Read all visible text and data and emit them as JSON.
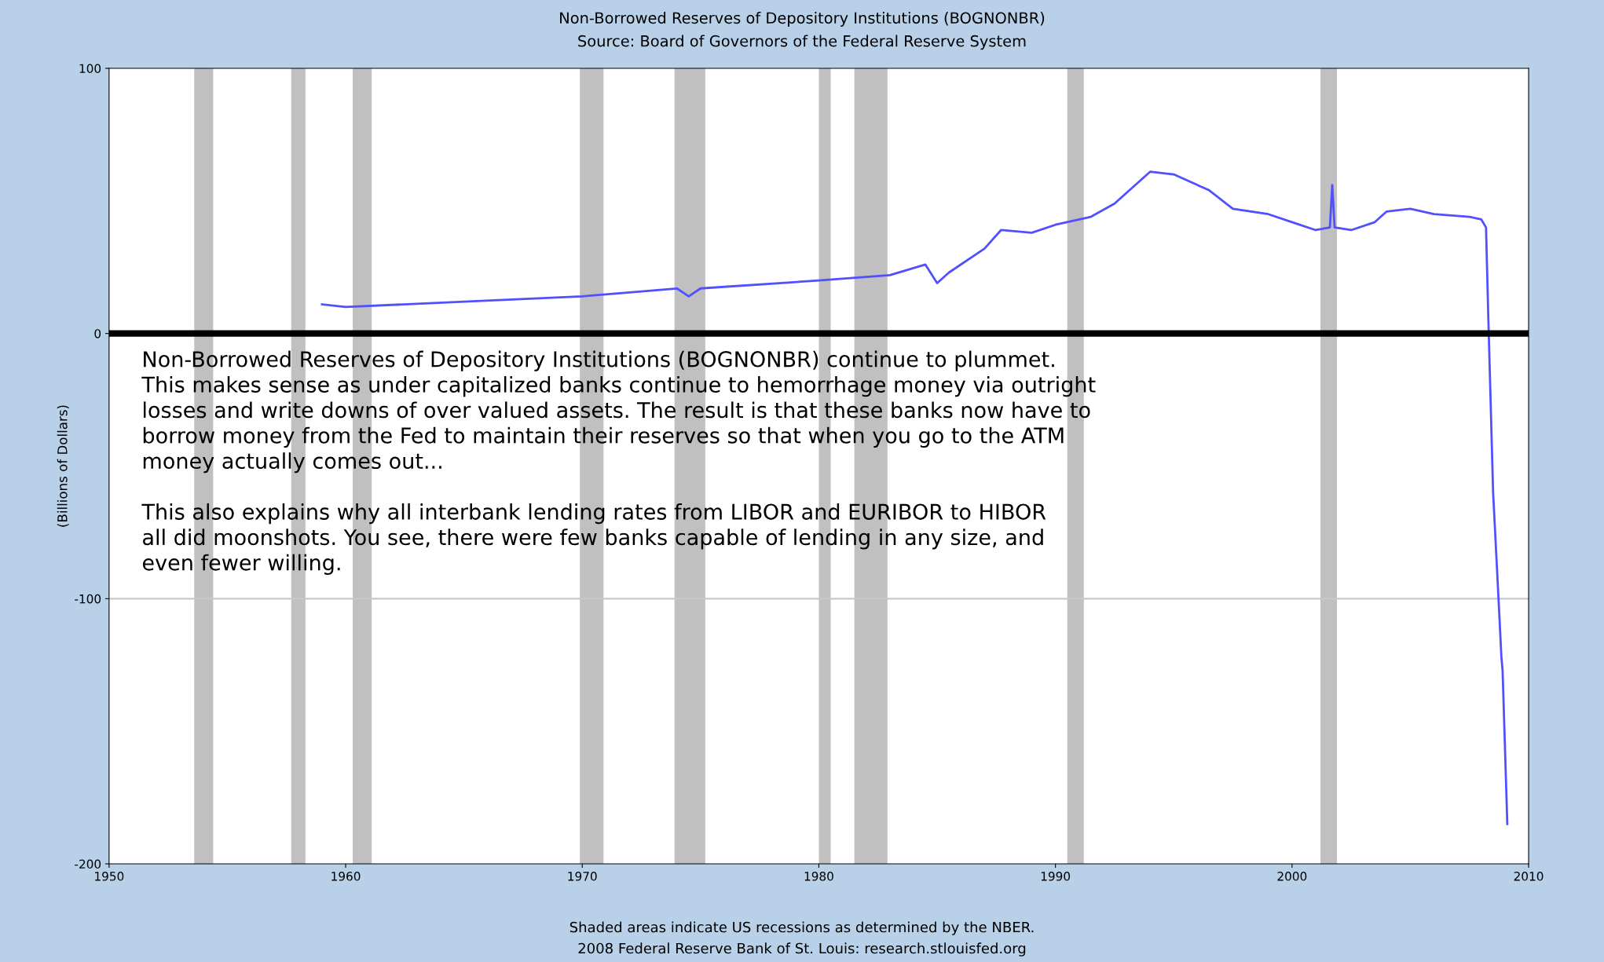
{
  "chart_data": {
    "type": "line",
    "title": "Non-Borrowed Reserves of Depository Institutions (BOGNONBR)",
    "subtitle": "Source: Board of Governors of the Federal Reserve System",
    "ylabel": "(Billions of Dollars)",
    "x": [
      1959.0,
      1960.0,
      1965.0,
      1970.0,
      1974.0,
      1974.5,
      1975.0,
      1980.0,
      1983.0,
      1984.5,
      1985.0,
      1985.5,
      1987.0,
      1987.7,
      1989.0,
      1990.0,
      1991.5,
      1992.5,
      1994.0,
      1995.0,
      1996.5,
      1997.5,
      1999.0,
      2000.0,
      2001.0,
      2001.6,
      2001.7,
      2001.8,
      2002.5,
      2003.5,
      2004.0,
      2005.0,
      2006.0,
      2007.5,
      2008.0,
      2008.2,
      2008.3,
      2008.5,
      2008.7,
      2008.85,
      2008.9,
      2009.1
    ],
    "series": [
      {
        "color": "#5050ff",
        "values": [
          11,
          10,
          12,
          14,
          17,
          14,
          17,
          20,
          22,
          26,
          19,
          23,
          32,
          39,
          38,
          41,
          44,
          49,
          61,
          60,
          54,
          47,
          45,
          42,
          39,
          40,
          56,
          40,
          39,
          42,
          46,
          47,
          45,
          44,
          43,
          40,
          5,
          -60,
          -95,
          -122,
          -127,
          -185
        ]
      }
    ],
    "xlim": [
      1950,
      2010
    ],
    "xticks": [
      1950,
      1960,
      1970,
      1980,
      1990,
      2000,
      2010
    ],
    "ylim": [
      -200,
      100
    ],
    "yticks": [
      -200,
      -100,
      0,
      100
    ],
    "legend": false,
    "marker": "none",
    "line_style": "solid",
    "ref_lines": [
      {
        "axis": "y",
        "value": 0,
        "color": "#000000"
      },
      {
        "axis": "y",
        "value": -100,
        "color": "#c8c8c8"
      }
    ],
    "bands": [
      {
        "axis": "x",
        "from": 1953.6,
        "to": 1954.4,
        "color": "#c0c0c0"
      },
      {
        "axis": "x",
        "from": 1957.7,
        "to": 1958.3,
        "color": "#c0c0c0"
      },
      {
        "axis": "x",
        "from": 1960.3,
        "to": 1961.1,
        "color": "#c0c0c0"
      },
      {
        "axis": "x",
        "from": 1969.9,
        "to": 1970.9,
        "color": "#c0c0c0"
      },
      {
        "axis": "x",
        "from": 1973.9,
        "to": 1975.2,
        "color": "#c0c0c0"
      },
      {
        "axis": "x",
        "from": 1980.0,
        "to": 1980.5,
        "color": "#c0c0c0"
      },
      {
        "axis": "x",
        "from": 1981.5,
        "to": 1982.9,
        "color": "#c0c0c0"
      },
      {
        "axis": "x",
        "from": 1990.5,
        "to": 1991.2,
        "color": "#c0c0c0"
      },
      {
        "axis": "x",
        "from": 2001.2,
        "to": 2001.9,
        "color": "#c0c0c0"
      }
    ],
    "annotations": [
      "Non-Borrowed Reserves of Depository Institutions (BOGNONBR) continue to plummet.\nThis makes sense as under capitalized banks continue to hemorrhage money via outright\nlosses and write downs of over valued assets. The result is that these banks now have to\nborrow money from the Fed to maintain their reserves so that when you go to the ATM\nmoney actually comes out...\n\nThis also explains why all interbank lending rates from LIBOR and EURIBOR to HIBOR\nall did moonshots. You see, there were few banks capable of lending in any size, and\neven fewer willing.",
      "Shaded areas indicate US recessions as determined by the NBER.",
      "2008 Federal Reserve Bank of St. Louis: research.stlouisfed.org"
    ]
  }
}
